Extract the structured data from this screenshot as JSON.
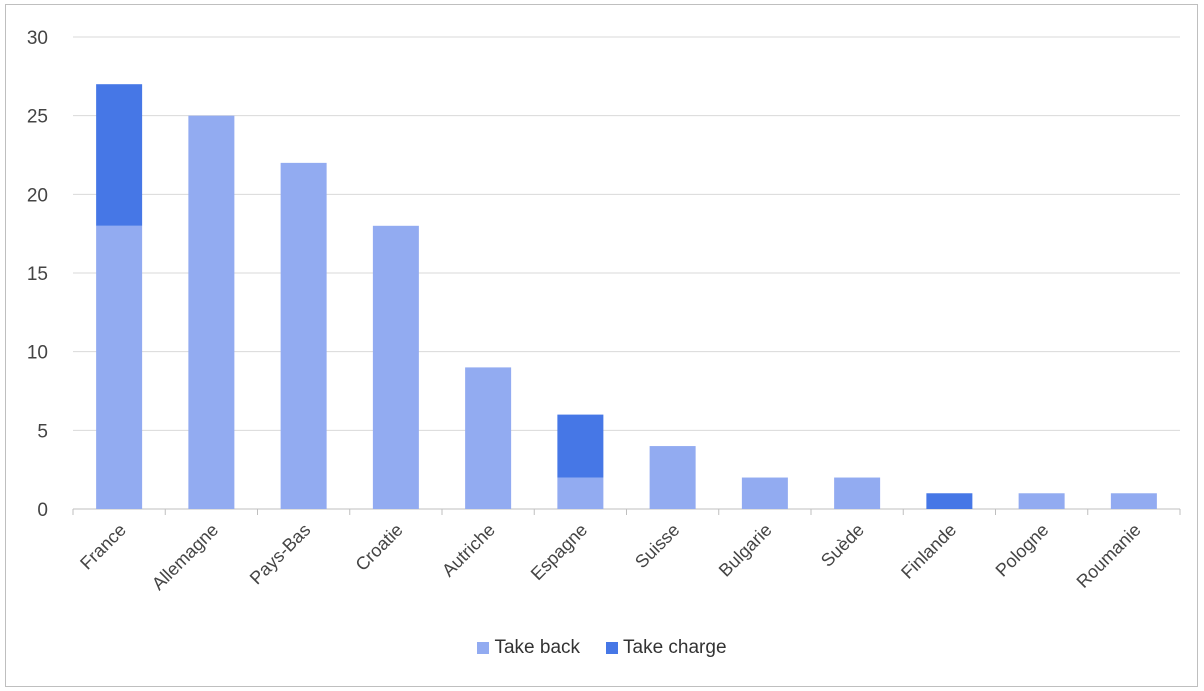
{
  "chart_data": {
    "type": "bar",
    "stacked": true,
    "categories": [
      "France",
      "Allemagne",
      "Pays-Bas",
      "Croatie",
      "Autriche",
      "Espagne",
      "Suisse",
      "Bulgarie",
      "Suède",
      "Finlande",
      "Pologne",
      "Roumanie"
    ],
    "series": [
      {
        "name": "Take back",
        "color": "#92abf1",
        "values": [
          18,
          25,
          22,
          18,
          9,
          2,
          4,
          2,
          2,
          0,
          1,
          1
        ]
      },
      {
        "name": "Take charge",
        "color": "#4677e6",
        "values": [
          9,
          0,
          0,
          0,
          0,
          4,
          0,
          0,
          0,
          1,
          0,
          0
        ]
      }
    ],
    "ylim": [
      0,
      30
    ],
    "yticks": [
      0,
      5,
      10,
      15,
      20,
      25,
      30
    ],
    "grid": true,
    "legend_position": "bottom",
    "title": "",
    "xlabel": "",
    "ylabel": ""
  }
}
